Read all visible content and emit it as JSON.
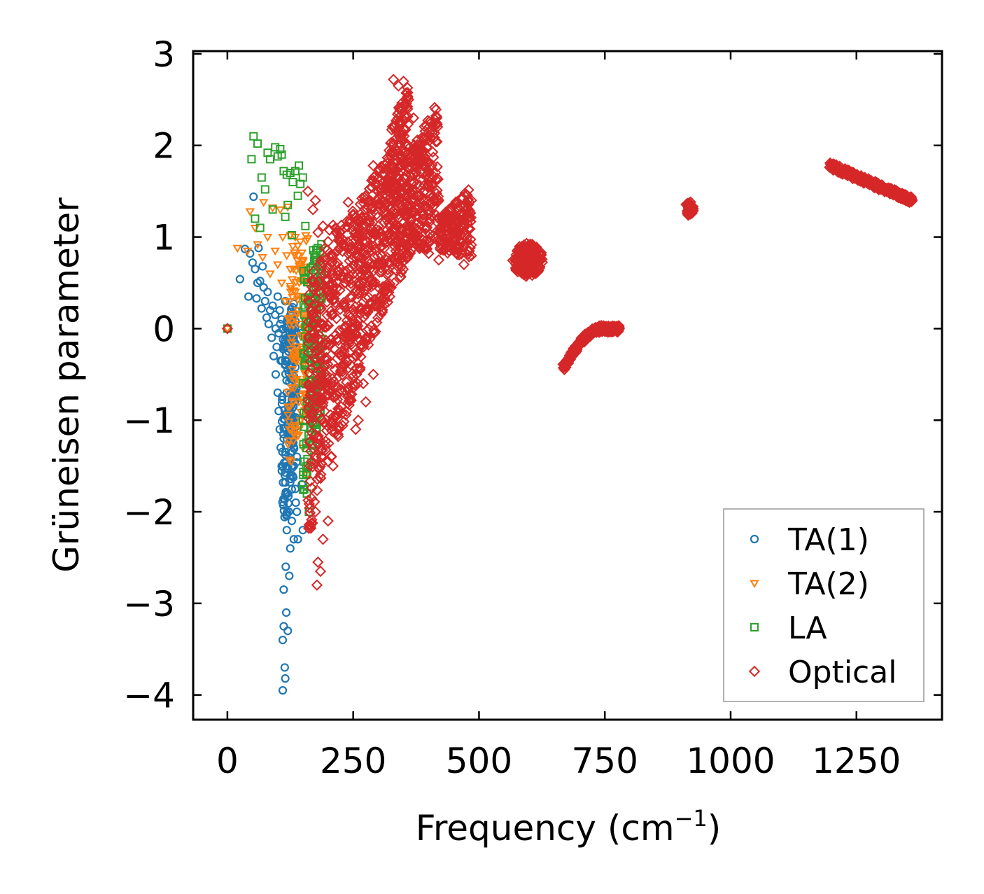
{
  "chart_data": {
    "type": "scatter",
    "xlabel": "Frequency (cm",
    "xlabel_sup": "−1",
    "xlabel_close": ")",
    "ylabel": "Grüneisen parameter",
    "xlim": [
      -68,
      1420
    ],
    "ylim": [
      -4.27,
      3.03
    ],
    "x_ticks": [
      0,
      250,
      500,
      750,
      1000,
      1250
    ],
    "x_tick_labels": [
      "0",
      "250",
      "500",
      "750",
      "1000",
      "1250"
    ],
    "y_ticks": [
      -4,
      -3,
      -2,
      -1,
      0,
      1,
      2,
      3
    ],
    "y_tick_labels": [
      "−4",
      "−3",
      "−2",
      "−1",
      "0",
      "1",
      "2",
      "3"
    ],
    "legend_position": "lower-right",
    "series": [
      {
        "name": "TA(1)",
        "marker": "circle",
        "color": "#1f77b4",
        "points": [
          [
            0,
            0
          ],
          [
            25,
            0.54
          ],
          [
            35,
            0.87
          ],
          [
            45,
            0.82
          ],
          [
            42,
            0.35
          ],
          [
            50,
            0.72
          ],
          [
            52,
            1.44
          ],
          [
            55,
            0.65
          ],
          [
            58,
            0.33
          ],
          [
            60,
            0.5
          ],
          [
            62,
            0.88
          ],
          [
            65,
            0.52
          ],
          [
            68,
            0.22
          ],
          [
            70,
            0.68
          ],
          [
            72,
            0.45
          ],
          [
            75,
            0.3
          ],
          [
            78,
            0.12
          ],
          [
            80,
            0.4
          ],
          [
            82,
            0.05
          ],
          [
            85,
            0.2
          ],
          [
            88,
            -0.1
          ],
          [
            90,
            0.25
          ],
          [
            92,
            -0.3
          ],
          [
            95,
            0.15
          ],
          [
            96,
            -0.5
          ],
          [
            98,
            -0.2
          ],
          [
            100,
            0.35
          ],
          [
            100,
            -0.7
          ],
          [
            102,
            -0.9
          ],
          [
            104,
            -1.1
          ],
          [
            105,
            0.05
          ],
          [
            106,
            -1.3
          ],
          [
            108,
            -1.5
          ],
          [
            110,
            -3.95
          ],
          [
            110,
            -3.4
          ],
          [
            112,
            -3.25
          ],
          [
            112,
            -2.85
          ],
          [
            114,
            -3.7
          ],
          [
            115,
            -3.82
          ],
          [
            116,
            -2.6
          ],
          [
            117,
            -3.1
          ],
          [
            118,
            -2.2
          ],
          [
            120,
            -1.8
          ],
          [
            120,
            -3.3
          ],
          [
            122,
            -2.0
          ],
          [
            123,
            -2.7
          ],
          [
            125,
            -2.4
          ],
          [
            126,
            -1.6
          ],
          [
            128,
            -2.1
          ],
          [
            130,
            -1.2
          ],
          [
            132,
            -2.3
          ],
          [
            134,
            -0.8
          ],
          [
            136,
            -1.9
          ],
          [
            138,
            -1.4
          ],
          [
            140,
            -0.6
          ],
          [
            142,
            -1.0
          ],
          [
            144,
            -0.3
          ],
          [
            146,
            -0.05
          ],
          [
            148,
            -1.7
          ],
          [
            150,
            -2.2
          ],
          [
            115,
            0.3
          ],
          [
            118,
            -0.1
          ],
          [
            120,
            -0.45
          ],
          [
            122,
            0.1
          ],
          [
            125,
            -0.85
          ],
          [
            128,
            -0.35
          ],
          [
            130,
            0.0
          ],
          [
            132,
            -1.5
          ],
          [
            135,
            -1.75
          ],
          [
            138,
            -2.0
          ],
          [
            140,
            -2.3
          ],
          [
            112,
            -1.2
          ],
          [
            114,
            -1.6
          ],
          [
            116,
            -0.2
          ],
          [
            118,
            -0.7
          ],
          [
            106,
            -0.35
          ],
          [
            108,
            0.1
          ],
          [
            104,
            0.2
          ],
          [
            102,
            -0.05
          ],
          [
            96,
            0.0
          ]
        ],
        "clusters": [
          {
            "x": [
              108,
              138
            ],
            "y_start": [
              -2.3,
              -1.5
            ],
            "y_end": [
              0.0,
              0.35
            ],
            "n": 180
          }
        ]
      },
      {
        "name": "TA(2)",
        "marker": "triangle-down",
        "color": "#ff7f0e",
        "points": [
          [
            0,
            0
          ],
          [
            20,
            0.88
          ],
          [
            40,
            0.85
          ],
          [
            45,
            1.28
          ],
          [
            55,
            1.1
          ],
          [
            60,
            0.92
          ],
          [
            70,
            0.78
          ],
          [
            72,
            1.38
          ],
          [
            80,
            1.0
          ],
          [
            85,
            0.6
          ],
          [
            90,
            1.32
          ],
          [
            95,
            0.85
          ],
          [
            100,
            0.7
          ],
          [
            105,
            1.3
          ],
          [
            108,
            0.5
          ],
          [
            110,
            1.0
          ],
          [
            115,
            0.3
          ],
          [
            118,
            0.8
          ],
          [
            120,
            1.33
          ],
          [
            122,
            0.1
          ],
          [
            125,
            0.65
          ],
          [
            128,
            -0.1
          ],
          [
            130,
            0.9
          ],
          [
            132,
            -0.3
          ],
          [
            135,
            0.4
          ],
          [
            138,
            -0.55
          ],
          [
            140,
            0.2
          ],
          [
            142,
            -0.8
          ],
          [
            145,
            -1.0
          ],
          [
            148,
            -0.2
          ],
          [
            150,
            -1.3
          ],
          [
            152,
            0.1
          ],
          [
            155,
            -0.5
          ],
          [
            158,
            -1.6
          ],
          [
            160,
            0.0
          ],
          [
            125,
            1.02
          ],
          [
            135,
            1.0
          ],
          [
            145,
            0.95
          ],
          [
            150,
            0.75
          ],
          [
            155,
            0.55
          ]
        ],
        "clusters": [
          {
            "x": [
              120,
              160
            ],
            "y_start": [
              -1.6,
              -0.8
            ],
            "y_end": [
              0.8,
              1.05
            ],
            "n": 120
          }
        ]
      },
      {
        "name": "LA",
        "marker": "square",
        "color": "#2ca02c",
        "points": [
          [
            0,
            0
          ],
          [
            52,
            2.1
          ],
          [
            48,
            1.85
          ],
          [
            60,
            2.02
          ],
          [
            55,
            1.2
          ],
          [
            65,
            1.1
          ],
          [
            68,
            1.65
          ],
          [
            75,
            1.52
          ],
          [
            80,
            1.92
          ],
          [
            85,
            1.85
          ],
          [
            90,
            1.3
          ],
          [
            95,
            1.98
          ],
          [
            100,
            1.88
          ],
          [
            105,
            1.96
          ],
          [
            108,
            1.9
          ],
          [
            112,
            1.72
          ],
          [
            115,
            1.22
          ],
          [
            118,
            1.68
          ],
          [
            120,
            1.35
          ],
          [
            125,
            1.7
          ],
          [
            128,
            1.02
          ],
          [
            130,
            1.6
          ],
          [
            135,
            1.72
          ],
          [
            140,
            1.45
          ],
          [
            142,
            1.78
          ],
          [
            145,
            1.58
          ],
          [
            150,
            1.65
          ],
          [
            155,
            1.12
          ],
          [
            158,
            -1.8
          ],
          [
            160,
            -1.5
          ],
          [
            162,
            -2.0
          ],
          [
            165,
            -1.2
          ],
          [
            170,
            -0.8
          ],
          [
            172,
            -1.4
          ],
          [
            175,
            -0.4
          ],
          [
            178,
            0.2
          ],
          [
            180,
            -0.6
          ],
          [
            182,
            0.5
          ],
          [
            185,
            -0.9
          ],
          [
            188,
            -0.5
          ]
        ],
        "clusters": [
          {
            "x": [
              150,
              188
            ],
            "y_start": [
              -1.9,
              -0.8
            ],
            "y_end": [
              0.85,
              1.0
            ],
            "n": 160
          }
        ]
      },
      {
        "name": "Optical",
        "marker": "diamond",
        "color": "#d62728",
        "points": [
          [
            0,
            0
          ],
          [
            160,
            1.5
          ],
          [
            170,
            1.3
          ],
          [
            175,
            1.4
          ],
          [
            178,
            -2.8
          ],
          [
            180,
            -2.55
          ],
          [
            185,
            -2.65
          ],
          [
            190,
            -2.3
          ],
          [
            175,
            -2.0
          ],
          [
            200,
            -2.1
          ],
          [
            210,
            -1.5
          ],
          [
            180,
            1.05
          ],
          [
            190,
            1.12
          ],
          [
            200,
            0.95
          ],
          [
            210,
            0.8
          ],
          [
            215,
            1.1
          ],
          [
            240,
            1.38
          ],
          [
            250,
            1.25
          ],
          [
            255,
            -1.1
          ],
          [
            260,
            -1.0
          ],
          [
            270,
            -0.6
          ],
          [
            275,
            -0.8
          ],
          [
            280,
            1.4
          ],
          [
            290,
            -0.5
          ],
          [
            295,
            1.35
          ],
          [
            300,
            1.5
          ],
          [
            310,
            0.3
          ],
          [
            320,
            0.6
          ],
          [
            290,
            1.78
          ],
          [
            330,
            2.72
          ],
          [
            340,
            2.65
          ],
          [
            350,
            2.7
          ],
          [
            360,
            2.5
          ],
          [
            370,
            2.3
          ],
          [
            380,
            2.0
          ],
          [
            390,
            1.8
          ],
          [
            400,
            1.7
          ],
          [
            420,
            1.4
          ],
          [
            440,
            1.3
          ],
          [
            460,
            1.1
          ],
          [
            480,
            0.85
          ],
          [
            470,
            0.7
          ],
          [
            420,
            0.75
          ],
          [
            400,
            0.82
          ],
          [
            380,
            0.95
          ],
          [
            360,
            1.05
          ]
        ],
        "clusters": [
          {
            "x": [
              160,
              200
            ],
            "y_start": [
              -2.4,
              -1.2
            ],
            "y_end": [
              0.5,
              1.0
            ],
            "n": 200
          },
          {
            "x": [
              200,
              260
            ],
            "y_start": [
              -1.5,
              -0.6
            ],
            "y_end": [
              1.1,
              1.35
            ],
            "n": 260
          },
          {
            "x": [
              260,
              320
            ],
            "y_start": [
              -0.5,
              0.3
            ],
            "y_end": [
              1.4,
              1.9
            ],
            "n": 260
          },
          {
            "x": [
              320,
              360
            ],
            "y_start": [
              0.2,
              0.8
            ],
            "y_end": [
              2.1,
              2.72
            ],
            "n": 260
          },
          {
            "x": [
              360,
              420
            ],
            "y_start": [
              0.8,
              0.9
            ],
            "y_end": [
              1.9,
              2.5
            ],
            "n": 240
          },
          {
            "x": [
              420,
              485
            ],
            "y_start": [
              0.85,
              0.75
            ],
            "y_end": [
              1.2,
              1.55
            ],
            "n": 180
          }
        ],
        "blobs": [
          {
            "cx": 597,
            "cy": 0.75,
            "rx": 30,
            "ry": 0.18,
            "n": 220
          },
          {
            "cx": 918,
            "cy": 1.31,
            "rx": 8,
            "ry": 0.08,
            "n": 50
          }
        ],
        "arcs": [
          {
            "x0": 668,
            "x1": 780,
            "n": 240,
            "shape": "hump"
          },
          {
            "x0": 1198,
            "x1": 1360,
            "y0": 1.78,
            "y1": 1.4,
            "n": 260
          }
        ]
      }
    ]
  }
}
